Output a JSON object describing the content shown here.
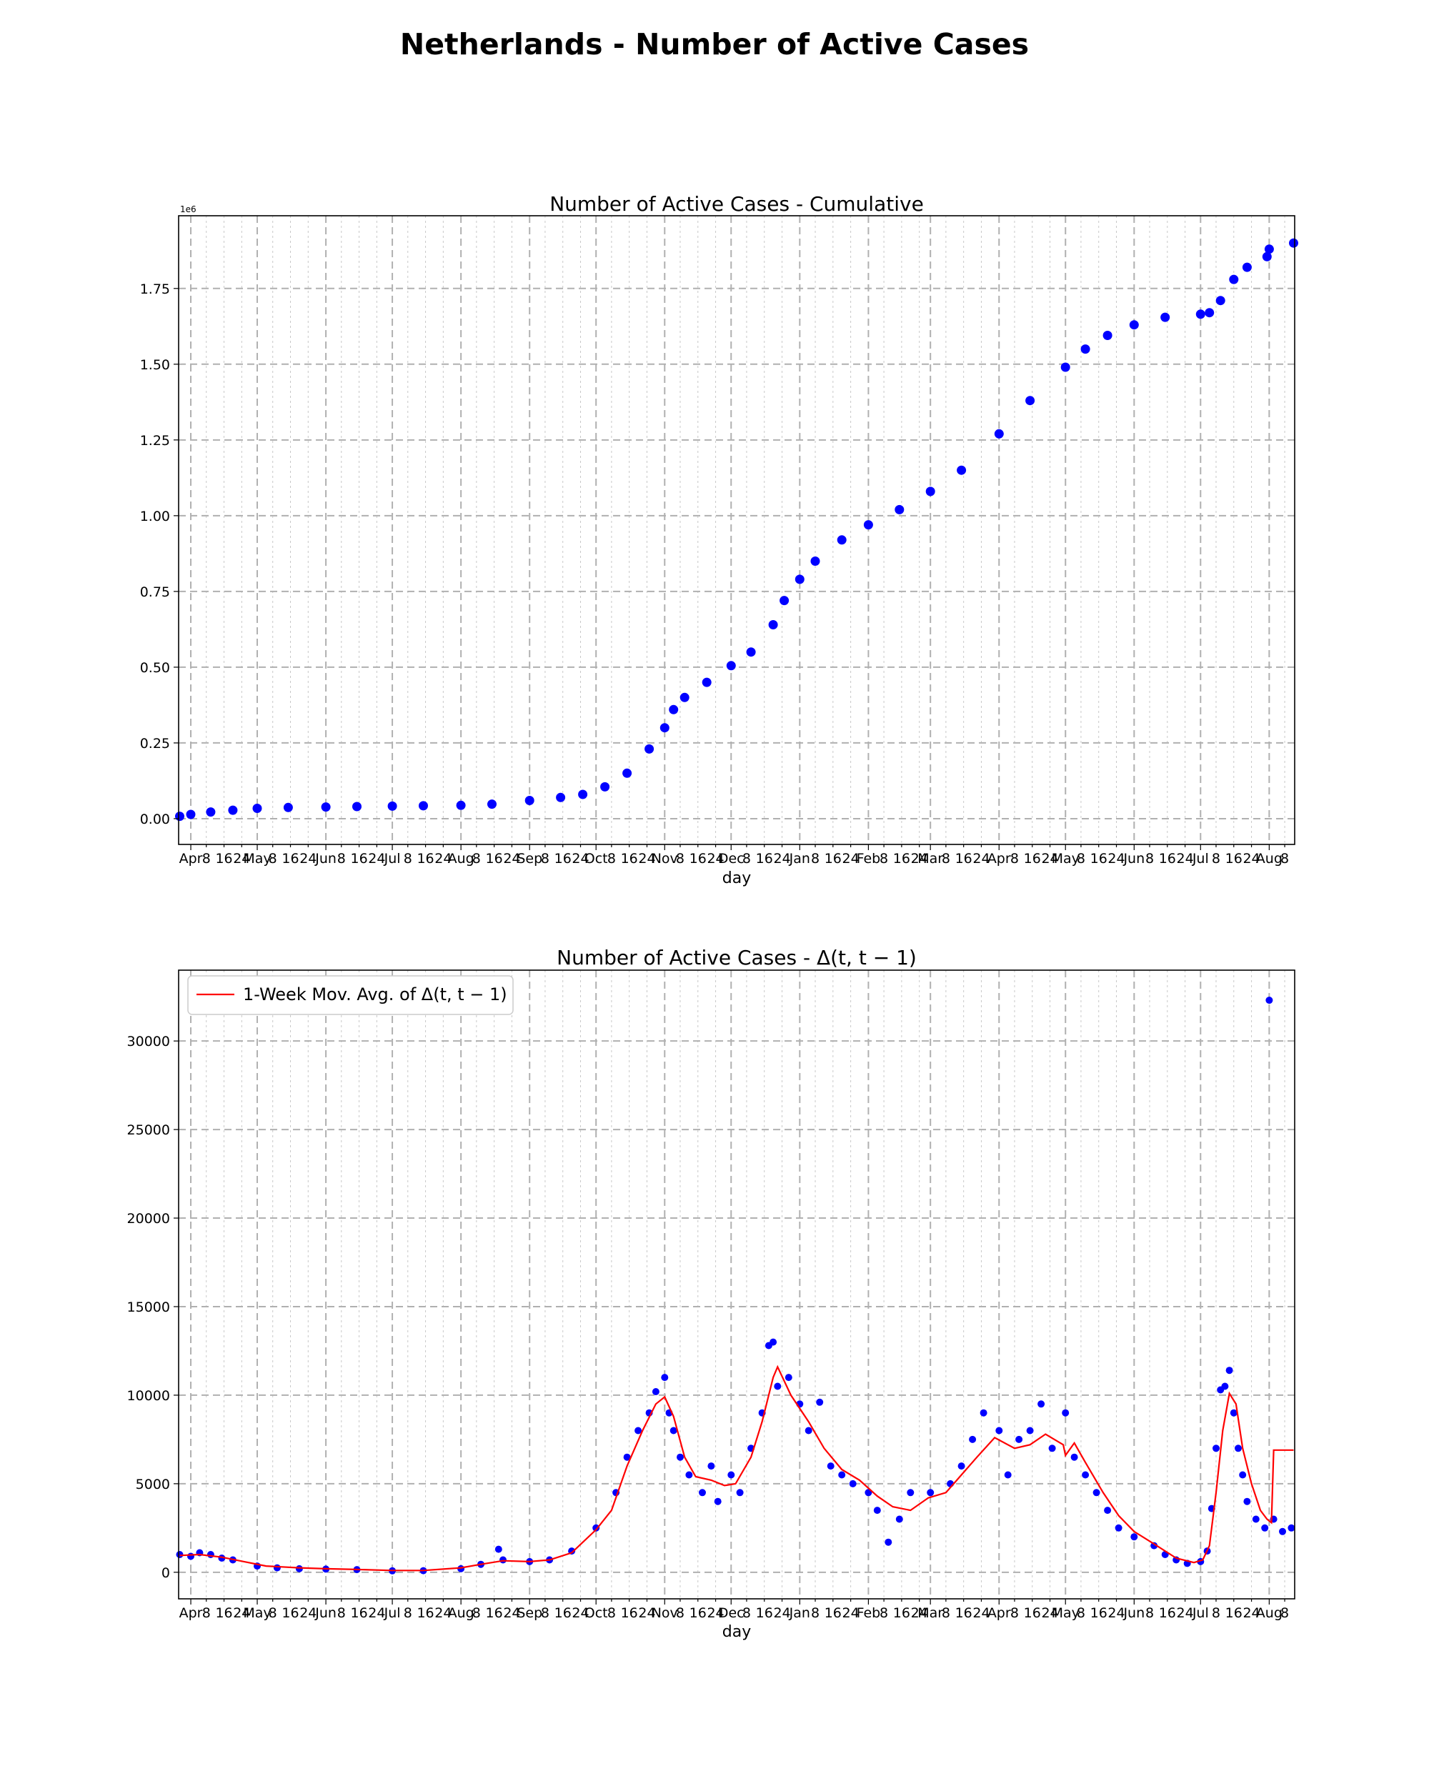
{
  "figure": {
    "title": "Netherlands - Number of Active Cases"
  },
  "colors": {
    "points": "#0000ff",
    "moving_average": "#ff0000",
    "grid_major": "#b0b0b0",
    "grid_minor": "#c8c8c8"
  },
  "chart_data": [
    {
      "type": "scatter",
      "title": "Number of Active Cases - Cumulative",
      "xlabel": "day",
      "ylabel": "",
      "y_offset_label": "1e6",
      "x_range": [
        "2020-03-27",
        "2021-08-12"
      ],
      "x_tick_labels": [
        "Apr",
        "8",
        "16",
        "24",
        "May",
        "8",
        "16",
        "24",
        "Jun",
        "8",
        "16",
        "24",
        "Jul",
        "8",
        "16",
        "24",
        "Aug",
        "8",
        "16",
        "24",
        "Sep",
        "8",
        "16",
        "24",
        "Oct",
        "8",
        "16",
        "24",
        "Nov",
        "8",
        "16",
        "24",
        "Dec",
        "8",
        "16",
        "24",
        "Jan",
        "8",
        "16",
        "24",
        "Feb",
        "8",
        "16",
        "24",
        "Mar",
        "8",
        "16",
        "24",
        "Apr",
        "8",
        "16",
        "24",
        "May",
        "8",
        "16",
        "24",
        "Jun",
        "8",
        "16",
        "24",
        "Jul",
        "8",
        "16",
        "24",
        "Aug",
        "8"
      ],
      "y_ticks": [
        "0.00",
        "0.25",
        "0.50",
        "0.75",
        "1.00",
        "1.25",
        "1.50",
        "1.75"
      ],
      "ylim": [
        -85000,
        1990000
      ],
      "grid": true,
      "series": [
        {
          "marker": "dot",
          "points": [
            [
              "2020-03-27",
              8000
            ],
            [
              "2020-04-01",
              14000
            ],
            [
              "2020-04-10",
              22000
            ],
            [
              "2020-04-20",
              28000
            ],
            [
              "2020-05-01",
              34000
            ],
            [
              "2020-05-15",
              37000
            ],
            [
              "2020-06-01",
              38500
            ],
            [
              "2020-06-15",
              40000
            ],
            [
              "2020-07-01",
              41500
            ],
            [
              "2020-07-15",
              42500
            ],
            [
              "2020-08-01",
              44000
            ],
            [
              "2020-08-15",
              48000
            ],
            [
              "2020-09-01",
              60000
            ],
            [
              "2020-09-15",
              70000
            ],
            [
              "2020-09-25",
              80000
            ],
            [
              "2020-10-05",
              105000
            ],
            [
              "2020-10-15",
              150000
            ],
            [
              "2020-10-25",
              230000
            ],
            [
              "2020-11-01",
              300000
            ],
            [
              "2020-11-05",
              360000
            ],
            [
              "2020-11-10",
              400000
            ],
            [
              "2020-11-20",
              450000
            ],
            [
              "2020-12-01",
              505000
            ],
            [
              "2020-12-10",
              550000
            ],
            [
              "2020-12-20",
              640000
            ],
            [
              "2020-12-25",
              720000
            ],
            [
              "2021-01-01",
              790000
            ],
            [
              "2021-01-08",
              850000
            ],
            [
              "2021-01-20",
              920000
            ],
            [
              "2021-02-01",
              970000
            ],
            [
              "2021-02-15",
              1020000
            ],
            [
              "2021-03-01",
              1080000
            ],
            [
              "2021-03-15",
              1150000
            ],
            [
              "2021-04-01",
              1270000
            ],
            [
              "2021-04-15",
              1380000
            ],
            [
              "2021-05-01",
              1490000
            ],
            [
              "2021-05-10",
              1550000
            ],
            [
              "2021-05-20",
              1595000
            ],
            [
              "2021-06-01",
              1630000
            ],
            [
              "2021-06-15",
              1655000
            ],
            [
              "2021-07-01",
              1665000
            ],
            [
              "2021-07-05",
              1670000
            ],
            [
              "2021-07-10",
              1710000
            ],
            [
              "2021-07-16",
              1780000
            ],
            [
              "2021-07-22",
              1820000
            ],
            [
              "2021-07-31",
              1855000
            ],
            [
              "2021-08-01",
              1880000
            ],
            [
              "2021-08-12",
              1900000
            ]
          ]
        }
      ]
    },
    {
      "type": "scatter",
      "title": "Number of Active Cases - Δ(t, t − 1)",
      "xlabel": "day",
      "ylabel": "",
      "x_range": [
        "2020-03-27",
        "2021-08-12"
      ],
      "x_tick_labels": [
        "Apr",
        "8",
        "16",
        "24",
        "May",
        "8",
        "16",
        "24",
        "Jun",
        "8",
        "16",
        "24",
        "Jul",
        "8",
        "16",
        "24",
        "Aug",
        "8",
        "16",
        "24",
        "Sep",
        "8",
        "16",
        "24",
        "Oct",
        "8",
        "16",
        "24",
        "Nov",
        "8",
        "16",
        "24",
        "Dec",
        "8",
        "16",
        "24",
        "Jan",
        "8",
        "16",
        "24",
        "Feb",
        "8",
        "16",
        "24",
        "Mar",
        "8",
        "16",
        "24",
        "Apr",
        "8",
        "16",
        "24",
        "May",
        "8",
        "16",
        "24",
        "Jun",
        "8",
        "16",
        "24",
        "Jul",
        "8",
        "16",
        "24",
        "Aug",
        "8"
      ],
      "y_ticks": [
        "0",
        "5000",
        "10000",
        "15000",
        "20000",
        "25000",
        "30000"
      ],
      "ylim": [
        -1500,
        34000
      ],
      "grid": true,
      "legend_placement": "top-left",
      "series": [
        {
          "marker": "dot",
          "points": [
            [
              "2020-03-27",
              1000
            ],
            [
              "2020-04-01",
              900
            ],
            [
              "2020-04-05",
              1100
            ],
            [
              "2020-04-10",
              1000
            ],
            [
              "2020-04-15",
              800
            ],
            [
              "2020-04-20",
              700
            ],
            [
              "2020-05-01",
              350
            ],
            [
              "2020-05-10",
              250
            ],
            [
              "2020-05-20",
              200
            ],
            [
              "2020-06-01",
              180
            ],
            [
              "2020-06-15",
              150
            ],
            [
              "2020-07-01",
              80
            ],
            [
              "2020-07-15",
              90
            ],
            [
              "2020-08-01",
              200
            ],
            [
              "2020-08-10",
              450
            ],
            [
              "2020-08-18",
              1300
            ],
            [
              "2020-08-20",
              700
            ],
            [
              "2020-09-01",
              600
            ],
            [
              "2020-09-10",
              700
            ],
            [
              "2020-09-20",
              1200
            ],
            [
              "2020-10-01",
              2500
            ],
            [
              "2020-10-10",
              4500
            ],
            [
              "2020-10-15",
              6500
            ],
            [
              "2020-10-20",
              8000
            ],
            [
              "2020-10-25",
              9000
            ],
            [
              "2020-10-28",
              10200
            ],
            [
              "2020-11-01",
              11000
            ],
            [
              "2020-11-03",
              9000
            ],
            [
              "2020-11-05",
              8000
            ],
            [
              "2020-11-08",
              6500
            ],
            [
              "2020-11-12",
              5500
            ],
            [
              "2020-11-18",
              4500
            ],
            [
              "2020-11-22",
              6000
            ],
            [
              "2020-11-25",
              4000
            ],
            [
              "2020-12-01",
              5500
            ],
            [
              "2020-12-05",
              4500
            ],
            [
              "2020-12-10",
              7000
            ],
            [
              "2020-12-15",
              9000
            ],
            [
              "2020-12-18",
              12800
            ],
            [
              "2020-12-20",
              13000
            ],
            [
              "2020-12-22",
              10500
            ],
            [
              "2020-12-27",
              11000
            ],
            [
              "2021-01-01",
              9500
            ],
            [
              "2021-01-05",
              8000
            ],
            [
              "2021-01-10",
              9600
            ],
            [
              "2021-01-15",
              6000
            ],
            [
              "2021-01-20",
              5500
            ],
            [
              "2021-01-25",
              5000
            ],
            [
              "2021-02-01",
              4500
            ],
            [
              "2021-02-05",
              3500
            ],
            [
              "2021-02-10",
              1700
            ],
            [
              "2021-02-15",
              3000
            ],
            [
              "2021-02-20",
              4500
            ],
            [
              "2021-03-01",
              4500
            ],
            [
              "2021-03-10",
              5000
            ],
            [
              "2021-03-15",
              6000
            ],
            [
              "2021-03-20",
              7500
            ],
            [
              "2021-03-25",
              9000
            ],
            [
              "2021-04-01",
              8000
            ],
            [
              "2021-04-05",
              5500
            ],
            [
              "2021-04-10",
              7500
            ],
            [
              "2021-04-15",
              8000
            ],
            [
              "2021-04-20",
              9500
            ],
            [
              "2021-04-25",
              7000
            ],
            [
              "2021-05-01",
              9000
            ],
            [
              "2021-05-05",
              6500
            ],
            [
              "2021-05-10",
              5500
            ],
            [
              "2021-05-15",
              4500
            ],
            [
              "2021-05-20",
              3500
            ],
            [
              "2021-05-25",
              2500
            ],
            [
              "2021-06-01",
              2000
            ],
            [
              "2021-06-10",
              1500
            ],
            [
              "2021-06-15",
              1000
            ],
            [
              "2021-06-20",
              700
            ],
            [
              "2021-06-25",
              500
            ],
            [
              "2021-07-01",
              600
            ],
            [
              "2021-07-04",
              1200
            ],
            [
              "2021-07-06",
              3600
            ],
            [
              "2021-07-08",
              7000
            ],
            [
              "2021-07-10",
              10300
            ],
            [
              "2021-07-12",
              10500
            ],
            [
              "2021-07-14",
              11400
            ],
            [
              "2021-07-16",
              9000
            ],
            [
              "2021-07-18",
              7000
            ],
            [
              "2021-07-20",
              5500
            ],
            [
              "2021-07-22",
              4000
            ],
            [
              "2021-07-26",
              3000
            ],
            [
              "2021-07-30",
              2500
            ],
            [
              "2021-08-01",
              32300
            ],
            [
              "2021-08-03",
              3000
            ],
            [
              "2021-08-07",
              2300
            ],
            [
              "2021-08-11",
              2500
            ]
          ]
        },
        {
          "name": "1-Week Mov. Avg. of Δ(t, t − 1)",
          "type": "line",
          "points": [
            [
              "2020-03-27",
              950
            ],
            [
              "2020-04-05",
              1000
            ],
            [
              "2020-04-15",
              850
            ],
            [
              "2020-04-25",
              600
            ],
            [
              "2020-05-05",
              350
            ],
            [
              "2020-05-20",
              250
            ],
            [
              "2020-06-01",
              200
            ],
            [
              "2020-06-15",
              160
            ],
            [
              "2020-07-01",
              100
            ],
            [
              "2020-07-15",
              100
            ],
            [
              "2020-08-01",
              250
            ],
            [
              "2020-08-10",
              450
            ],
            [
              "2020-08-20",
              650
            ],
            [
              "2020-09-01",
              600
            ],
            [
              "2020-09-10",
              700
            ],
            [
              "2020-09-20",
              1100
            ],
            [
              "2020-10-01",
              2400
            ],
            [
              "2020-10-08",
              3500
            ],
            [
              "2020-10-15",
              6000
            ],
            [
              "2020-10-22",
              8000
            ],
            [
              "2020-10-28",
              9500
            ],
            [
              "2020-11-01",
              9900
            ],
            [
              "2020-11-05",
              8800
            ],
            [
              "2020-11-10",
              6500
            ],
            [
              "2020-11-15",
              5400
            ],
            [
              "2020-11-22",
              5200
            ],
            [
              "2020-11-28",
              4900
            ],
            [
              "2020-12-03",
              5000
            ],
            [
              "2020-12-10",
              6500
            ],
            [
              "2020-12-15",
              8500
            ],
            [
              "2020-12-20",
              11000
            ],
            [
              "2020-12-22",
              11600
            ],
            [
              "2020-12-28",
              10000
            ],
            [
              "2021-01-05",
              8500
            ],
            [
              "2021-01-12",
              7000
            ],
            [
              "2021-01-20",
              5800
            ],
            [
              "2021-01-28",
              5200
            ],
            [
              "2021-02-05",
              4300
            ],
            [
              "2021-02-12",
              3700
            ],
            [
              "2021-02-20",
              3500
            ],
            [
              "2021-02-28",
              4200
            ],
            [
              "2021-03-08",
              4500
            ],
            [
              "2021-03-15",
              5500
            ],
            [
              "2021-03-22",
              6500
            ],
            [
              "2021-03-30",
              7600
            ],
            [
              "2021-04-08",
              7000
            ],
            [
              "2021-04-15",
              7200
            ],
            [
              "2021-04-22",
              7800
            ],
            [
              "2021-04-30",
              7200
            ],
            [
              "2021-05-01",
              6600
            ],
            [
              "2021-05-05",
              7300
            ],
            [
              "2021-05-10",
              6200
            ],
            [
              "2021-05-18",
              4500
            ],
            [
              "2021-05-25",
              3200
            ],
            [
              "2021-06-01",
              2300
            ],
            [
              "2021-06-10",
              1600
            ],
            [
              "2021-06-20",
              800
            ],
            [
              "2021-06-28",
              550
            ],
            [
              "2021-07-02",
              700
            ],
            [
              "2021-07-05",
              1500
            ],
            [
              "2021-07-08",
              4500
            ],
            [
              "2021-07-11",
              8000
            ],
            [
              "2021-07-14",
              10100
            ],
            [
              "2021-07-17",
              9500
            ],
            [
              "2021-07-20",
              7000
            ],
            [
              "2021-07-24",
              5000
            ],
            [
              "2021-07-28",
              3500
            ],
            [
              "2021-07-31",
              3000
            ],
            [
              "2021-08-02",
              2800
            ],
            [
              "2021-08-03",
              6900
            ],
            [
              "2021-08-12",
              6900
            ]
          ]
        }
      ]
    }
  ]
}
